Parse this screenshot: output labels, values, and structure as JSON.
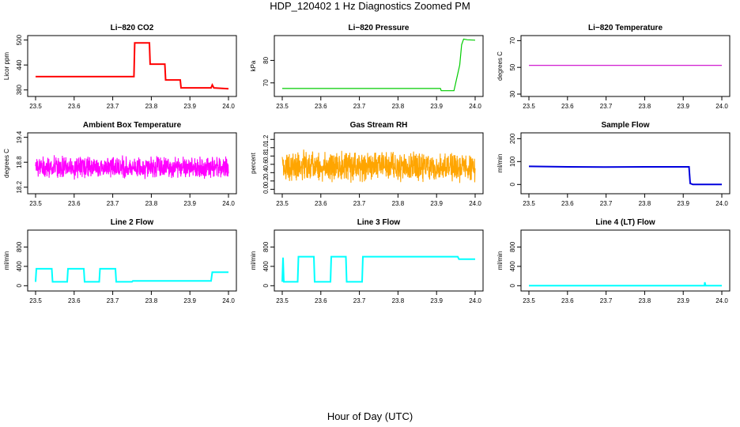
{
  "figure": {
    "title": "HDP_120402  1 Hz Diagnostics Zoomed PM",
    "xlabel": "Hour of Day (UTC)"
  },
  "chart_data": [
    {
      "type": "line",
      "title": "Li−820 CO2",
      "ylabel": "Licor ppm",
      "color": "#ff0000",
      "xlim": [
        23.5,
        24.0
      ],
      "ylim": [
        370,
        505
      ],
      "xticks": [
        "23.5",
        "23.6",
        "23.7",
        "23.8",
        "23.9",
        "24.0"
      ],
      "yticks": [
        380,
        440,
        500
      ],
      "series": [
        {
          "x": [
            23.5,
            23.755,
            23.757,
            23.795,
            23.797,
            23.835,
            23.837,
            23.875,
            23.877,
            23.955,
            23.958,
            23.962,
            24.0
          ],
          "y": [
            412,
            412,
            493,
            493,
            442,
            442,
            404,
            404,
            385,
            385,
            392,
            385,
            383
          ]
        }
      ]
    },
    {
      "type": "line",
      "title": "Li−820 Pressure",
      "ylabel": "kPa",
      "color": "#00cc00",
      "xlim": [
        23.5,
        24.0
      ],
      "ylim": [
        65,
        90
      ],
      "xticks": [
        "23.5",
        "23.6",
        "23.7",
        "23.8",
        "23.9",
        "24.0"
      ],
      "yticks": [
        70,
        80
      ],
      "series": [
        {
          "x": [
            23.5,
            23.91,
            23.912,
            23.945,
            23.96,
            23.965,
            23.97,
            23.98,
            24.0
          ],
          "y": [
            67.5,
            67.5,
            66.5,
            66.5,
            78,
            87,
            89.5,
            89.2,
            89
          ]
        }
      ]
    },
    {
      "type": "line",
      "title": "Li−820 Temperature",
      "ylabel": "degrees C",
      "color": "#cc00cc",
      "xlim": [
        23.5,
        24.0
      ],
      "ylim": [
        30,
        72
      ],
      "xticks": [
        "23.5",
        "23.6",
        "23.7",
        "23.8",
        "23.9",
        "24.0"
      ],
      "yticks": [
        30,
        50,
        70
      ],
      "series": [
        {
          "x": [
            23.5,
            24.0
          ],
          "y": [
            51.5,
            51.5
          ]
        }
      ]
    },
    {
      "type": "line",
      "title": "Ambient Box Temperature",
      "ylabel": "degrees C",
      "color": "#ff00ff",
      "xlim": [
        23.5,
        24.0
      ],
      "ylim": [
        18.1,
        19.45
      ],
      "xticks": [
        "23.5",
        "23.6",
        "23.7",
        "23.8",
        "23.9",
        "24.0"
      ],
      "yticks": [
        18.2,
        18.8,
        19.4
      ],
      "noise": {
        "mean": 18.68,
        "amplitude": 0.3,
        "points": 900
      },
      "series": []
    },
    {
      "type": "line",
      "title": "Gas Stream RH",
      "ylabel": "percent",
      "color": "#ffa500",
      "xlim": [
        23.5,
        24.0
      ],
      "ylim": [
        -0.05,
        1.3
      ],
      "xticks": [
        "23.5",
        "23.6",
        "23.7",
        "23.8",
        "23.9",
        "24.0"
      ],
      "yticks": [
        "0.0",
        "0.2",
        "0.4",
        "0.6",
        "0.8",
        "1.0",
        "1.2"
      ],
      "noise": {
        "mean": 0.55,
        "amplitude": 0.42,
        "points": 900
      },
      "series": []
    },
    {
      "type": "line",
      "title": "Sample Flow",
      "ylabel": "ml/min",
      "color": "#0000dd",
      "xlim": [
        23.5,
        24.0
      ],
      "ylim": [
        -30,
        215
      ],
      "xticks": [
        "23.5",
        "23.6",
        "23.7",
        "23.8",
        "23.9",
        "24.0"
      ],
      "yticks": [
        0,
        100,
        200
      ],
      "series": [
        {
          "x": [
            23.5,
            23.6,
            23.7,
            23.8,
            23.915,
            23.918,
            23.925,
            23.95,
            24.0
          ],
          "y": [
            79,
            77,
            76,
            77,
            77,
            5,
            0,
            0,
            0
          ]
        }
      ]
    },
    {
      "type": "line",
      "title": "Line 2 Flow",
      "ylabel": "ml/min",
      "color": "#00ffff",
      "xlim": [
        23.5,
        24.0
      ],
      "ylim": [
        -60,
        1100
      ],
      "xticks": [
        "23.5",
        "23.6",
        "23.7",
        "23.8",
        "23.9",
        "24.0"
      ],
      "yticks": [
        0,
        400,
        800
      ],
      "series": [
        {
          "x": [
            23.5,
            23.502,
            23.542,
            23.544,
            23.582,
            23.584,
            23.625,
            23.627,
            23.665,
            23.667,
            23.707,
            23.709,
            23.75,
            23.752,
            23.955,
            23.958,
            24.0
          ],
          "y": [
            80,
            350,
            350,
            80,
            80,
            350,
            350,
            80,
            80,
            350,
            350,
            80,
            80,
            100,
            100,
            280,
            280
          ]
        }
      ]
    },
    {
      "type": "line",
      "title": "Line 3 Flow",
      "ylabel": "ml/min",
      "color": "#00ffff",
      "xlim": [
        23.5,
        24.0
      ],
      "ylim": [
        -60,
        1100
      ],
      "xticks": [
        "23.5",
        "23.6",
        "23.7",
        "23.8",
        "23.9",
        "24.0"
      ],
      "yticks": [
        0,
        400,
        800
      ],
      "series": [
        {
          "x": [
            23.5,
            23.502,
            23.504,
            23.54,
            23.542,
            23.582,
            23.584,
            23.625,
            23.627,
            23.665,
            23.667,
            23.707,
            23.709,
            23.955,
            23.958,
            24.0
          ],
          "y": [
            80,
            580,
            80,
            80,
            600,
            600,
            80,
            80,
            600,
            600,
            80,
            80,
            600,
            600,
            550,
            550
          ]
        }
      ]
    },
    {
      "type": "line",
      "title": "Line 4 (LT) Flow",
      "ylabel": "ml/min",
      "color": "#00ffff",
      "xlim": [
        23.5,
        24.0
      ],
      "ylim": [
        -60,
        1100
      ],
      "xticks": [
        "23.5",
        "23.6",
        "23.7",
        "23.8",
        "23.9",
        "24.0"
      ],
      "yticks": [
        0,
        400,
        800
      ],
      "series": [
        {
          "x": [
            23.5,
            23.955,
            23.956,
            23.958,
            24.0
          ],
          "y": [
            0,
            0,
            70,
            0,
            0
          ]
        }
      ]
    }
  ]
}
